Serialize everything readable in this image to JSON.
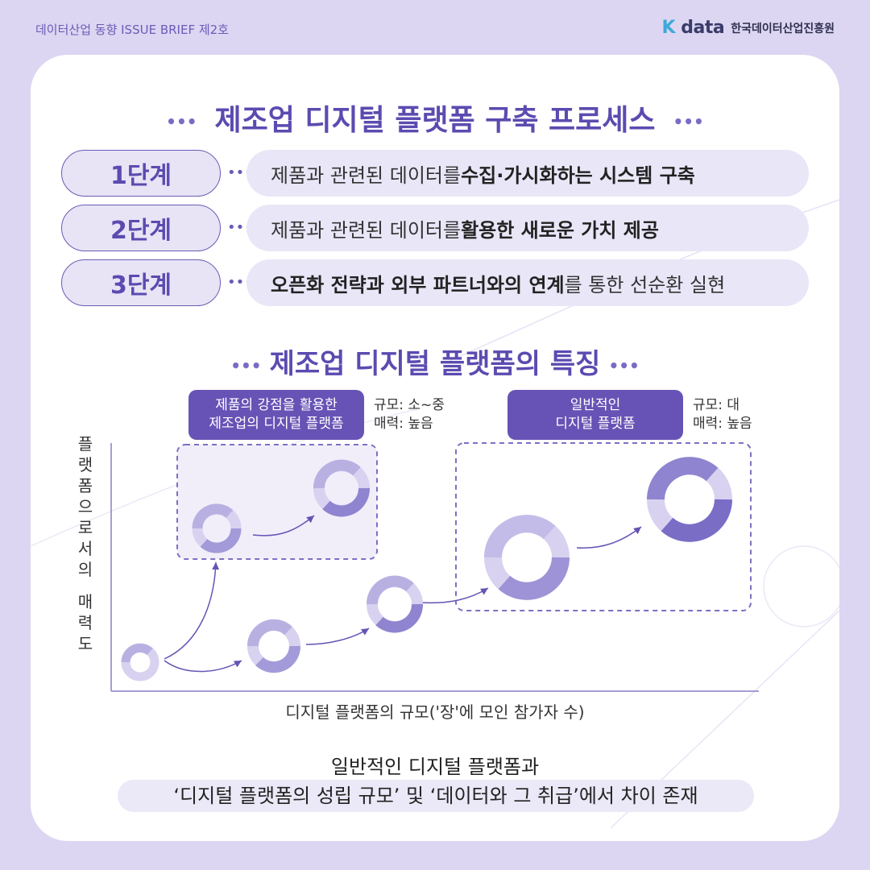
{
  "header": {
    "series_label": "데이터산업 동향 ISSUE BRIEF 제2호",
    "logo_text": "data",
    "logo_k": "K",
    "org_name": "한국데이터산업진흥원"
  },
  "process": {
    "title": "제조업 디지털 플랫폼 구축 프로세스",
    "steps": [
      {
        "label": "1단계",
        "pre": "제품과 관련된 데이터를 ",
        "bold": "수집·가시화하는 시스템 구축",
        "post": ""
      },
      {
        "label": "2단계",
        "pre": "제품과 관련된 데이터를 ",
        "bold": "활용한 새로운 가치 제공",
        "post": ""
      },
      {
        "label": "3단계",
        "pre": "",
        "bold": "오픈화 전략과 외부 파트너와의 연계",
        "post": "를 통한 선순환 실현"
      }
    ]
  },
  "features": {
    "title": "제조업 디지털 플랫폼의 특징",
    "group_strength": {
      "line1": "제품의 강점을 활용한",
      "line2": "제조업의 디지털 플랫폼",
      "meta1": "규모: 소~중",
      "meta2": "매력: 높음"
    },
    "group_general": {
      "line1": "일반적인",
      "line2": "디지털 플랫폼",
      "meta1": "규모: 대",
      "meta2": "매력: 높음"
    },
    "y_axis_label": "플랫폼으로서의 매력도",
    "x_axis_label": "디지털 플랫폼의 규모('장'에 모인 참가자 수)"
  },
  "conclusion": {
    "line1": "일반적인 디지털 플랫폼과",
    "line2": "‘디지털 플랫폼의 성립 규모’ 및 ‘데이터와 그 취급’에서 차이 존재"
  },
  "colors": {
    "primary": "#6753b5",
    "light": "#e9e6f7",
    "background": "#dcd6f2"
  }
}
